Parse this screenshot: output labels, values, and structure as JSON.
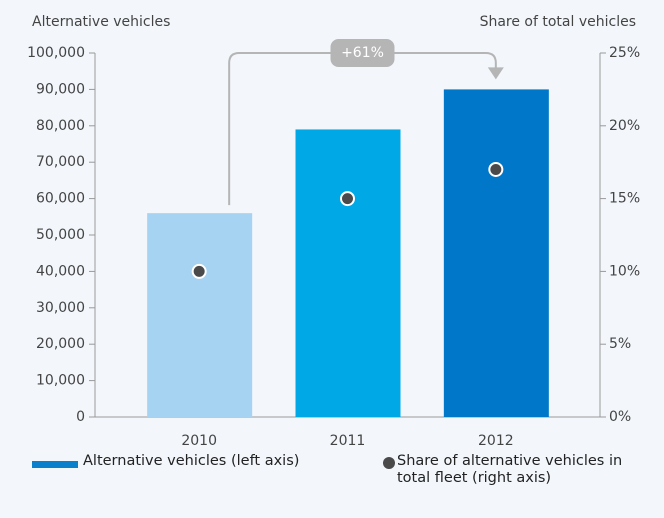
{
  "chart_data": {
    "type": "bar",
    "y_axis_label": "Alternative vehicles",
    "y2_axis_label": "Share of total vehicles",
    "annotation": "+61%",
    "categories": [
      "2010",
      "2011",
      "2012"
    ],
    "series": [
      {
        "name": "Alternative vehicles (left axis)",
        "type": "bar",
        "axis": "y",
        "color": "#0a80cc",
        "colors": [
          "#a6d3f2",
          "#00a9e6",
          "#0077c8"
        ],
        "values": [
          56000,
          79000,
          90000
        ]
      },
      {
        "name": "Share of alternative vehicles in total fleet (right axis)",
        "type": "scatter",
        "axis": "y2",
        "color": "#4a4a4a",
        "values": [
          10,
          15,
          17
        ]
      }
    ],
    "ylim": [
      0,
      100000
    ],
    "yticks": [
      0,
      {
        "value": 10000,
        "label": "10,000"
      },
      {
        "value": 20000,
        "label": "20,000"
      },
      {
        "value": 30000,
        "label": "30,000"
      },
      {
        "value": 40000,
        "label": "40,000"
      },
      {
        "value": 50000,
        "label": "50,000"
      },
      {
        "value": 60000,
        "label": "60,000"
      },
      {
        "value": 70000,
        "label": "70,000"
      },
      {
        "value": 80000,
        "label": "80,000"
      },
      {
        "value": 90000,
        "label": "90,000"
      },
      {
        "value": 100000,
        "label": "100,000"
      }
    ],
    "y2lim": [
      0,
      25
    ],
    "y2ticks": [
      {
        "value": 0,
        "label": "0%"
      },
      {
        "value": 5,
        "label": "5%"
      },
      {
        "value": 10,
        "label": "10%"
      },
      {
        "value": 15,
        "label": "15%"
      },
      {
        "value": 20,
        "label": "20%"
      },
      {
        "value": 25,
        "label": "25%"
      }
    ],
    "grid": false
  }
}
